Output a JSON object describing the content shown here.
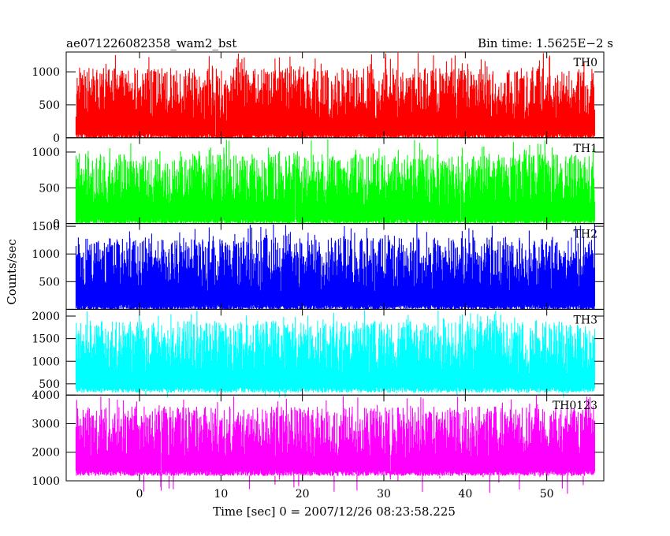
{
  "chart_data": {
    "type": "line",
    "title": "ae071226082358_wam2_bst",
    "subtitle": "Bin time: 1.5625E−2 s",
    "xlabel": "Time [sec] 0 = 2007/12/26 08:23:58.225",
    "ylabel": "Counts/sec",
    "xlim": [
      -9,
      57
    ],
    "x_range": [
      -7.8,
      55.9
    ],
    "x_ticks": [
      {
        "value": 0,
        "label": "0"
      },
      {
        "value": 10,
        "label": "10"
      },
      {
        "value": 20,
        "label": "20"
      },
      {
        "value": 30,
        "label": "30"
      },
      {
        "value": 40,
        "label": "40"
      },
      {
        "value": 50,
        "label": "50"
      }
    ],
    "grid": false,
    "panels": [
      {
        "name": "TH0",
        "color": "#ff0000",
        "ylim": [
          0,
          1300
        ],
        "mean": 430,
        "low": 60,
        "high": 1060,
        "peak": 1300,
        "y_ticks": [
          {
            "value": 0,
            "label": "0"
          },
          {
            "value": 500,
            "label": "500"
          },
          {
            "value": 1000,
            "label": "1000"
          }
        ]
      },
      {
        "name": "TH1",
        "color": "#00ff00",
        "ylim": [
          0,
          1200
        ],
        "mean": 420,
        "low": 60,
        "high": 980,
        "peak": 1200,
        "y_ticks": [
          {
            "value": 0,
            "label": "0"
          },
          {
            "value": 500,
            "label": "500"
          },
          {
            "value": 1000,
            "label": "1000"
          }
        ]
      },
      {
        "name": "TH2",
        "color": "#0000ff",
        "ylim": [
          0,
          1550
        ],
        "mean": 600,
        "low": 80,
        "high": 1300,
        "peak": 1550,
        "y_ticks": [
          {
            "value": 500,
            "label": "500"
          },
          {
            "value": 1000,
            "label": "1000"
          },
          {
            "value": 1500,
            "label": "1500"
          }
        ]
      },
      {
        "name": "TH3",
        "color": "#00ffff",
        "ylim": [
          250,
          2150
        ],
        "mean": 1050,
        "low": 420,
        "high": 1900,
        "peak": 2150,
        "y_ticks": [
          {
            "value": 500,
            "label": "500"
          },
          {
            "value": 1000,
            "label": "1000"
          },
          {
            "value": 1500,
            "label": "1500"
          },
          {
            "value": 2000,
            "label": "2000"
          }
        ]
      },
      {
        "name": "TH0123",
        "color": "#ff00ff",
        "ylim": [
          1000,
          4000
        ],
        "mean": 2450,
        "low": 1350,
        "high": 3600,
        "peak": 4000,
        "y_ticks": [
          {
            "value": 1000,
            "label": "1000"
          },
          {
            "value": 2000,
            "label": "2000"
          },
          {
            "value": 3000,
            "label": "3000"
          },
          {
            "value": 4000,
            "label": "4000"
          }
        ]
      }
    ]
  }
}
